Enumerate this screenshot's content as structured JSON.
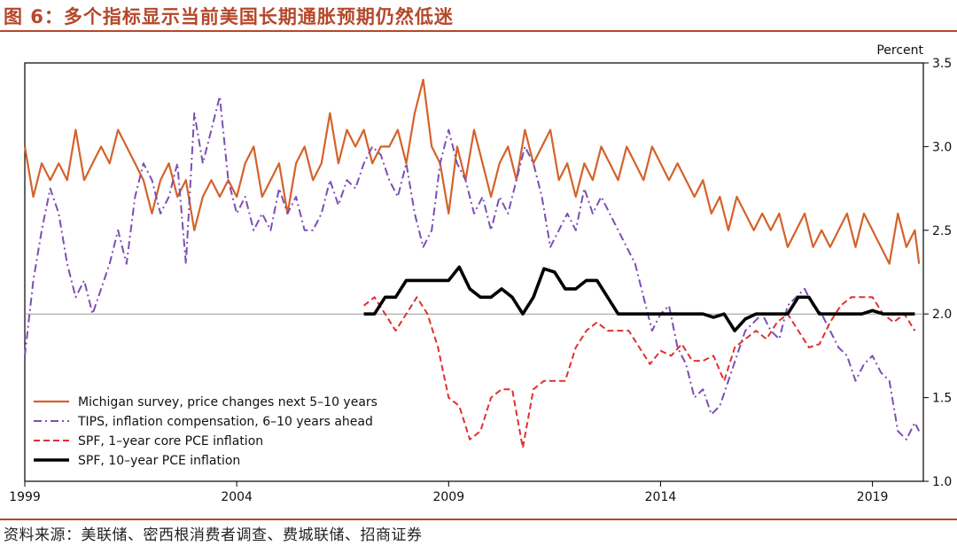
{
  "figure": {
    "title": "图 6：多个指标显示当前美国长期通胀预期仍然低迷",
    "source": "资料来源：美联储、密西根消费者调查、费城联储、招商证券"
  },
  "chart_data": {
    "type": "line",
    "ylabel": "Percent",
    "ylim": [
      1.0,
      3.5
    ],
    "xlim": [
      1999.0,
      2020.2
    ],
    "y_axis_position": "right",
    "yticks": [
      1.0,
      1.5,
      2.0,
      2.5,
      3.0,
      3.5
    ],
    "ytick_labels": [
      "1.0",
      "1.5",
      "2.0",
      "2.5",
      "3.0",
      "3.5"
    ],
    "xticks": [
      1999,
      2004,
      2009,
      2014,
      2019
    ],
    "xtick_labels": [
      "1999",
      "2004",
      "2009",
      "2014",
      "2019"
    ],
    "reference_line": 2.0,
    "legend_position": "lower-left",
    "series": [
      {
        "name": "Michigan survey, price changes next 5–10 years",
        "color": "#d4622a",
        "style": "solid",
        "x": [
          1999.0,
          1999.2,
          1999.4,
          1999.6,
          1999.8,
          2000.0,
          2000.2,
          2000.4,
          2000.6,
          2000.8,
          2001.0,
          2001.2,
          2001.4,
          2001.6,
          2001.8,
          2002.0,
          2002.2,
          2002.4,
          2002.6,
          2002.8,
          2003.0,
          2003.2,
          2003.4,
          2003.6,
          2003.8,
          2004.0,
          2004.2,
          2004.4,
          2004.6,
          2004.8,
          2005.0,
          2005.2,
          2005.4,
          2005.6,
          2005.8,
          2006.0,
          2006.2,
          2006.4,
          2006.6,
          2006.8,
          2007.0,
          2007.2,
          2007.4,
          2007.6,
          2007.8,
          2008.0,
          2008.2,
          2008.4,
          2008.6,
          2008.8,
          2009.0,
          2009.2,
          2009.4,
          2009.6,
          2009.8,
          2010.0,
          2010.2,
          2010.4,
          2010.6,
          2010.8,
          2011.0,
          2011.2,
          2011.4,
          2011.6,
          2011.8,
          2012.0,
          2012.2,
          2012.4,
          2012.6,
          2012.8,
          2013.0,
          2013.2,
          2013.4,
          2013.6,
          2013.8,
          2014.0,
          2014.2,
          2014.4,
          2014.6,
          2014.8,
          2015.0,
          2015.2,
          2015.4,
          2015.6,
          2015.8,
          2016.0,
          2016.2,
          2016.4,
          2016.6,
          2016.8,
          2017.0,
          2017.2,
          2017.4,
          2017.6,
          2017.8,
          2018.0,
          2018.2,
          2018.4,
          2018.6,
          2018.8,
          2019.0,
          2019.2,
          2019.4,
          2019.6,
          2019.8,
          2020.0,
          2020.1
        ],
        "y": [
          3.0,
          2.7,
          2.9,
          2.8,
          2.9,
          2.8,
          3.1,
          2.8,
          2.9,
          3.0,
          2.9,
          3.1,
          3.0,
          2.9,
          2.8,
          2.6,
          2.8,
          2.9,
          2.7,
          2.8,
          2.5,
          2.7,
          2.8,
          2.7,
          2.8,
          2.7,
          2.9,
          3.0,
          2.7,
          2.8,
          2.9,
          2.6,
          2.9,
          3.0,
          2.8,
          2.9,
          3.2,
          2.9,
          3.1,
          3.0,
          3.1,
          2.9,
          3.0,
          3.0,
          3.1,
          2.9,
          3.2,
          3.4,
          3.0,
          2.9,
          2.6,
          3.0,
          2.8,
          3.1,
          2.9,
          2.7,
          2.9,
          3.0,
          2.8,
          3.1,
          2.9,
          3.0,
          3.1,
          2.8,
          2.9,
          2.7,
          2.9,
          2.8,
          3.0,
          2.9,
          2.8,
          3.0,
          2.9,
          2.8,
          3.0,
          2.9,
          2.8,
          2.9,
          2.8,
          2.7,
          2.8,
          2.6,
          2.7,
          2.5,
          2.7,
          2.6,
          2.5,
          2.6,
          2.5,
          2.6,
          2.4,
          2.5,
          2.6,
          2.4,
          2.5,
          2.4,
          2.5,
          2.6,
          2.4,
          2.6,
          2.5,
          2.4,
          2.3,
          2.6,
          2.4,
          2.5,
          2.3
        ],
        "values": [
          3.0,
          2.7,
          2.9,
          2.8,
          2.9,
          2.8,
          3.1,
          2.8,
          2.9,
          3.0,
          2.9,
          3.1,
          3.0,
          2.9,
          2.8,
          2.6,
          2.8,
          2.9,
          2.7,
          2.8,
          2.5,
          2.7,
          2.8,
          2.7,
          2.8,
          2.7,
          2.9,
          3.0,
          2.7,
          2.8,
          2.9,
          2.6,
          2.9,
          3.0,
          2.8,
          2.9,
          3.2,
          2.9,
          3.1,
          3.0,
          3.1,
          2.9,
          3.0,
          3.0,
          3.1,
          2.9,
          3.2,
          3.4,
          3.0,
          2.9,
          2.6,
          3.0,
          2.8,
          3.1,
          2.9,
          2.7,
          2.9,
          3.0,
          2.8,
          3.1,
          2.9,
          3.0,
          3.1,
          2.8,
          2.9,
          2.7,
          2.9,
          2.8,
          3.0,
          2.9,
          2.8,
          3.0,
          2.9,
          2.8,
          3.0,
          2.9,
          2.8,
          2.9,
          2.8,
          2.7,
          2.8,
          2.6,
          2.7,
          2.5,
          2.7,
          2.6,
          2.5,
          2.6,
          2.5,
          2.6,
          2.4,
          2.5,
          2.6,
          2.4,
          2.5,
          2.4,
          2.5,
          2.6,
          2.4,
          2.6,
          2.5,
          2.4,
          2.3,
          2.6,
          2.4,
          2.5,
          2.3
        ]
      },
      {
        "name": "TIPS, inflation compensation, 6–10 years ahead",
        "color": "#7b4fb5",
        "style": "dashdot",
        "x": [
          1999.0,
          1999.2,
          1999.4,
          1999.6,
          1999.8,
          2000.0,
          2000.2,
          2000.4,
          2000.6,
          2000.8,
          2001.0,
          2001.2,
          2001.4,
          2001.6,
          2001.8,
          2002.0,
          2002.2,
          2002.4,
          2002.6,
          2002.8,
          2003.0,
          2003.2,
          2003.4,
          2003.6,
          2003.8,
          2004.0,
          2004.2,
          2004.4,
          2004.6,
          2004.8,
          2005.0,
          2005.2,
          2005.4,
          2005.6,
          2005.8,
          2006.0,
          2006.2,
          2006.4,
          2006.6,
          2006.8,
          2007.0,
          2007.2,
          2007.4,
          2007.6,
          2007.8,
          2008.0,
          2008.2,
          2008.4,
          2008.6,
          2008.8,
          2009.0,
          2009.2,
          2009.4,
          2009.6,
          2009.8,
          2010.0,
          2010.2,
          2010.4,
          2010.6,
          2010.8,
          2011.0,
          2011.2,
          2011.4,
          2011.6,
          2011.8,
          2012.0,
          2012.2,
          2012.4,
          2012.6,
          2012.8,
          2013.0,
          2013.2,
          2013.4,
          2013.6,
          2013.8,
          2014.0,
          2014.2,
          2014.4,
          2014.6,
          2014.8,
          2015.0,
          2015.2,
          2015.4,
          2015.6,
          2015.8,
          2016.0,
          2016.2,
          2016.4,
          2016.6,
          2016.8,
          2017.0,
          2017.2,
          2017.4,
          2017.6,
          2017.8,
          2018.0,
          2018.2,
          2018.4,
          2018.6,
          2018.8,
          2019.0,
          2019.2,
          2019.4,
          2019.6,
          2019.8,
          2020.0,
          2020.1
        ],
        "y": [
          1.75,
          2.2,
          2.5,
          2.75,
          2.6,
          2.3,
          2.1,
          2.2,
          2.0,
          2.15,
          2.3,
          2.5,
          2.3,
          2.7,
          2.9,
          2.8,
          2.6,
          2.7,
          2.9,
          2.3,
          3.2,
          2.9,
          3.1,
          3.3,
          2.8,
          2.6,
          2.7,
          2.5,
          2.6,
          2.5,
          2.75,
          2.6,
          2.7,
          2.5,
          2.5,
          2.6,
          2.8,
          2.65,
          2.8,
          2.75,
          2.9,
          3.0,
          2.95,
          2.8,
          2.7,
          2.9,
          2.6,
          2.4,
          2.5,
          2.9,
          3.1,
          2.9,
          2.8,
          2.6,
          2.7,
          2.5,
          2.7,
          2.6,
          2.8,
          3.0,
          2.9,
          2.7,
          2.4,
          2.5,
          2.6,
          2.5,
          2.75,
          2.6,
          2.7,
          2.6,
          2.5,
          2.4,
          2.3,
          2.1,
          1.9,
          2.0,
          2.05,
          1.8,
          1.7,
          1.5,
          1.55,
          1.4,
          1.45,
          1.6,
          1.75,
          1.9,
          1.95,
          2.0,
          1.9,
          1.85,
          2.05,
          2.1,
          2.15,
          2.05,
          2.0,
          1.9,
          1.8,
          1.75,
          1.6,
          1.7,
          1.75,
          1.65,
          1.6,
          1.3,
          1.25,
          1.35,
          1.3
        ],
        "values": [
          1.75,
          2.2,
          2.5,
          2.75,
          2.6,
          2.3,
          2.1,
          2.2,
          2.0,
          2.15,
          2.3,
          2.5,
          2.3,
          2.7,
          2.9,
          2.8,
          2.6,
          2.7,
          2.9,
          2.3,
          3.2,
          2.9,
          3.1,
          3.3,
          2.8,
          2.6,
          2.7,
          2.5,
          2.6,
          2.5,
          2.75,
          2.6,
          2.7,
          2.5,
          2.5,
          2.6,
          2.8,
          2.65,
          2.8,
          2.75,
          2.9,
          3.0,
          2.95,
          2.8,
          2.7,
          2.9,
          2.6,
          2.4,
          2.5,
          2.9,
          3.1,
          2.9,
          2.8,
          2.6,
          2.7,
          2.5,
          2.7,
          2.6,
          2.8,
          3.0,
          2.9,
          2.7,
          2.4,
          2.5,
          2.6,
          2.5,
          2.75,
          2.6,
          2.7,
          2.6,
          2.5,
          2.4,
          2.3,
          2.1,
          1.9,
          2.0,
          2.05,
          1.8,
          1.7,
          1.5,
          1.55,
          1.4,
          1.45,
          1.6,
          1.75,
          1.9,
          1.95,
          2.0,
          1.9,
          1.85,
          2.05,
          2.1,
          2.15,
          2.05,
          2.0,
          1.9,
          1.8,
          1.75,
          1.6,
          1.7,
          1.75,
          1.65,
          1.6,
          1.3,
          1.25,
          1.35,
          1.3
        ]
      },
      {
        "name": "SPF, 1–year core PCE inflation",
        "color": "#e03030",
        "style": "dashed",
        "x": [
          2007.0,
          2007.25,
          2007.5,
          2007.75,
          2008.0,
          2008.25,
          2008.5,
          2008.75,
          2009.0,
          2009.25,
          2009.5,
          2009.75,
          2010.0,
          2010.25,
          2010.5,
          2010.75,
          2011.0,
          2011.25,
          2011.5,
          2011.75,
          2012.0,
          2012.25,
          2012.5,
          2012.75,
          2013.0,
          2013.25,
          2013.5,
          2013.75,
          2014.0,
          2014.25,
          2014.5,
          2014.75,
          2015.0,
          2015.25,
          2015.5,
          2015.75,
          2016.0,
          2016.25,
          2016.5,
          2016.75,
          2017.0,
          2017.25,
          2017.5,
          2017.75,
          2018.0,
          2018.25,
          2018.5,
          2018.75,
          2019.0,
          2019.25,
          2019.5,
          2019.75,
          2020.0
        ],
        "y": [
          2.05,
          2.1,
          2.0,
          1.9,
          2.0,
          2.1,
          2.0,
          1.8,
          1.5,
          1.45,
          1.25,
          1.3,
          1.5,
          1.55,
          1.55,
          1.2,
          1.55,
          1.6,
          1.6,
          1.6,
          1.8,
          1.9,
          1.95,
          1.9,
          1.9,
          1.9,
          1.8,
          1.7,
          1.78,
          1.75,
          1.82,
          1.72,
          1.72,
          1.75,
          1.6,
          1.8,
          1.85,
          1.9,
          1.85,
          1.95,
          2.0,
          1.9,
          1.8,
          1.82,
          1.95,
          2.05,
          2.1,
          2.1,
          2.1,
          2.0,
          1.95,
          2.0,
          1.9
        ],
        "values": [
          2.05,
          2.1,
          2.0,
          1.9,
          2.0,
          2.1,
          2.0,
          1.8,
          1.5,
          1.45,
          1.25,
          1.3,
          1.5,
          1.55,
          1.55,
          1.2,
          1.55,
          1.6,
          1.6,
          1.6,
          1.8,
          1.9,
          1.95,
          1.9,
          1.9,
          1.9,
          1.8,
          1.7,
          1.78,
          1.75,
          1.82,
          1.72,
          1.72,
          1.75,
          1.6,
          1.8,
          1.85,
          1.9,
          1.85,
          1.95,
          2.0,
          1.9,
          1.8,
          1.82,
          1.95,
          2.05,
          2.1,
          2.1,
          2.1,
          2.0,
          1.95,
          2.0,
          1.9
        ]
      },
      {
        "name": "SPF, 10–year PCE inflation",
        "color": "#000000",
        "style": "solid-thick",
        "x": [
          2007.0,
          2007.25,
          2007.5,
          2007.75,
          2008.0,
          2008.25,
          2008.5,
          2008.75,
          2009.0,
          2009.25,
          2009.5,
          2009.75,
          2010.0,
          2010.25,
          2010.5,
          2010.75,
          2011.0,
          2011.25,
          2011.5,
          2011.75,
          2012.0,
          2012.25,
          2012.5,
          2012.75,
          2013.0,
          2013.25,
          2013.5,
          2013.75,
          2014.0,
          2014.25,
          2014.5,
          2014.75,
          2015.0,
          2015.25,
          2015.5,
          2015.75,
          2016.0,
          2016.25,
          2016.5,
          2016.75,
          2017.0,
          2017.25,
          2017.5,
          2017.75,
          2018.0,
          2018.25,
          2018.5,
          2018.75,
          2019.0,
          2019.25,
          2019.5,
          2019.75,
          2020.0
        ],
        "y": [
          2.0,
          2.0,
          2.1,
          2.1,
          2.2,
          2.2,
          2.2,
          2.2,
          2.2,
          2.28,
          2.15,
          2.1,
          2.1,
          2.15,
          2.1,
          2.0,
          2.1,
          2.27,
          2.25,
          2.15,
          2.15,
          2.2,
          2.2,
          2.1,
          2.0,
          2.0,
          2.0,
          2.0,
          2.0,
          2.0,
          2.0,
          2.0,
          2.0,
          1.98,
          2.0,
          1.9,
          1.97,
          2.0,
          2.0,
          2.0,
          2.0,
          2.1,
          2.1,
          2.0,
          2.0,
          2.0,
          2.0,
          2.0,
          2.02,
          2.0,
          2.0,
          2.0,
          2.0
        ],
        "values": [
          2.0,
          2.0,
          2.1,
          2.1,
          2.2,
          2.2,
          2.2,
          2.2,
          2.2,
          2.28,
          2.15,
          2.1,
          2.1,
          2.15,
          2.1,
          2.0,
          2.1,
          2.27,
          2.25,
          2.15,
          2.15,
          2.2,
          2.2,
          2.1,
          2.0,
          2.0,
          2.0,
          2.0,
          2.0,
          2.0,
          2.0,
          2.0,
          2.0,
          1.98,
          2.0,
          1.9,
          1.97,
          2.0,
          2.0,
          2.0,
          2.0,
          2.1,
          2.1,
          2.0,
          2.0,
          2.0,
          2.0,
          2.0,
          2.02,
          2.0,
          2.0,
          2.0,
          2.0
        ]
      }
    ]
  }
}
